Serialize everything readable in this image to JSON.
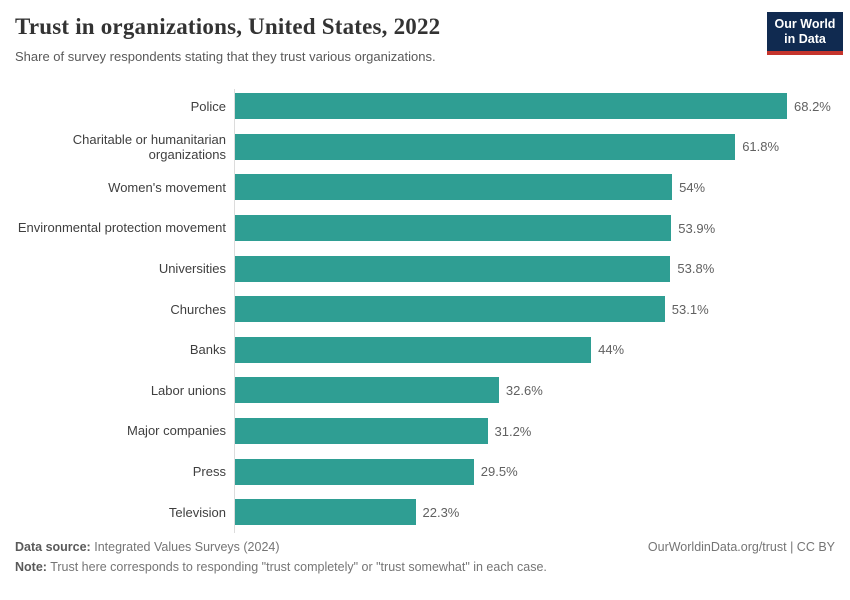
{
  "header": {
    "title": "Trust in organizations, United States, 2022",
    "subtitle": "Share of survey respondents stating that they trust various organizations.",
    "logo": {
      "line1": "Our World",
      "line2": "in Data"
    }
  },
  "chart_data": {
    "type": "bar",
    "orientation": "horizontal",
    "title": "Trust in organizations, United States, 2022",
    "unit": "%",
    "xlim": [
      0,
      68.2
    ],
    "grid": false,
    "legend": "none",
    "bar_color": "#2F9E93",
    "categories": [
      "Police",
      "Charitable or humanitarian organizations",
      "Women's movement",
      "Environmental protection movement",
      "Universities",
      "Churches",
      "Banks",
      "Labor unions",
      "Major companies",
      "Press",
      "Television"
    ],
    "values": [
      68.2,
      61.8,
      54,
      53.9,
      53.8,
      53.1,
      44,
      32.6,
      31.2,
      29.5,
      22.3
    ],
    "value_labels": [
      "68.2%",
      "61.8%",
      "54%",
      "53.9%",
      "53.8%",
      "53.1%",
      "44%",
      "32.6%",
      "31.2%",
      "29.5%",
      "22.3%"
    ]
  },
  "footer": {
    "data_source_label": "Data source:",
    "data_source": "Integrated Values Surveys (2024)",
    "note_label": "Note:",
    "note": "Trust here corresponds to responding \"trust completely\" or \"trust somewhat\" in each case.",
    "link": "OurWorldinData.org/trust | CC BY"
  },
  "colors": {
    "bar": "#2F9E93",
    "logo_navy": "#102A50",
    "logo_red": "#C5342C",
    "axis_line": "#dcdcdc",
    "title_text": "#333333",
    "label_text": "#3f3f3f",
    "value_text": "#616161",
    "footer_text": "#757575"
  }
}
